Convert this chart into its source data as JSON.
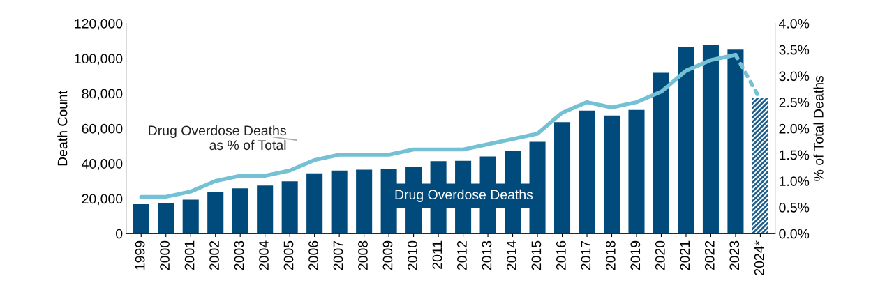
{
  "chart_data": {
    "type": "bar",
    "ylabel": "Death Count",
    "y2label": "% of Total Deaths",
    "categories": [
      "1999",
      "2000",
      "2001",
      "2002",
      "2003",
      "2004",
      "2005",
      "2006",
      "2007",
      "2008",
      "2009",
      "2010",
      "2011",
      "2012",
      "2013",
      "2014",
      "2015",
      "2016",
      "2017",
      "2018",
      "2019",
      "2020",
      "2021",
      "2022",
      "2023",
      "2024*"
    ],
    "series": [
      {
        "name": "Drug Overdose Deaths",
        "color": "#004b7c",
        "colors": [
          "#004b7c",
          "#004b7c",
          "#004b7c",
          "#004b7c",
          "#004b7c",
          "#004b7c",
          "#004b7c",
          "#004b7c",
          "#004b7c",
          "#004b7c",
          "#004b7c",
          "#004b7c",
          "#004b7c",
          "#004b7c",
          "#004b7c",
          "#004b7c",
          "#004b7c",
          "#004b7c",
          "#004b7c",
          "#004b7c",
          "#004b7c",
          "#004b7c",
          "#004b7c",
          "#004b7c",
          "#004b7c",
          "#1f5f8b"
        ],
        "values": [
          16800,
          17400,
          19400,
          23500,
          25800,
          27400,
          29800,
          34400,
          36000,
          36500,
          37000,
          38300,
          41300,
          41500,
          44000,
          47100,
          52400,
          63600,
          70200,
          67400,
          70600,
          91800,
          106700,
          107900,
          105000,
          77600
        ]
      },
      {
        "name": "Drug Overdose Deaths\nas % of Total",
        "type": "line",
        "axis": "y2",
        "color": "#74c0d4",
        "line_style": "solid",
        "values": [
          0.7,
          0.7,
          0.8,
          1.0,
          1.1,
          1.1,
          1.2,
          1.4,
          1.5,
          1.5,
          1.5,
          1.6,
          1.6,
          1.6,
          1.7,
          1.8,
          1.9,
          2.3,
          2.5,
          2.4,
          2.5,
          2.7,
          3.1,
          3.3,
          3.4,
          null
        ]
      },
      {
        "type": "line",
        "axis": "y2",
        "color": "#74c0d4",
        "line_style": "dotted",
        "values": [
          null,
          null,
          null,
          null,
          null,
          null,
          null,
          null,
          null,
          null,
          null,
          null,
          null,
          null,
          null,
          null,
          null,
          null,
          null,
          null,
          null,
          null,
          null,
          null,
          3.4,
          2.55
        ]
      }
    ],
    "ylim": [
      0,
      120000
    ],
    "yticks": [
      0,
      {
        "value": 20000,
        "label": "20,000"
      },
      {
        "value": 40000,
        "label": "40,000"
      },
      {
        "value": 60000,
        "label": "60,000"
      },
      {
        "value": 80000,
        "label": "80,000"
      },
      {
        "value": 100000,
        "label": "100,000"
      },
      {
        "value": 120000,
        "label": "120,000"
      }
    ],
    "y2lim": [
      0,
      4.0
    ],
    "y2ticks": [
      {
        "value": 0,
        "label": "0.0%"
      },
      {
        "value": 0.5,
        "label": "0.5%"
      },
      {
        "value": 1.0,
        "label": "1.0%"
      },
      {
        "value": 1.5,
        "label": "1.5%"
      },
      {
        "value": 2.0,
        "label": "2.0%"
      },
      {
        "value": 2.5,
        "label": "2.5%"
      },
      {
        "value": 3.0,
        "label": "3.0%"
      },
      {
        "value": 3.5,
        "label": "3.5%"
      },
      {
        "value": 4.0,
        "label": "4.0%"
      }
    ],
    "grid": false,
    "legend": false
  }
}
